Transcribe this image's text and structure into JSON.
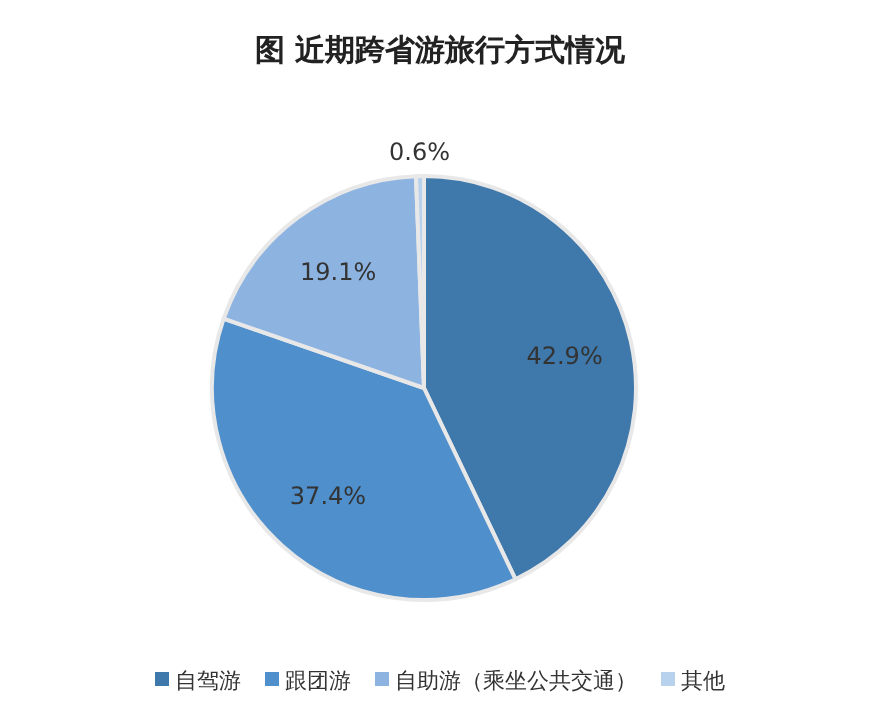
{
  "chart_data": {
    "type": "pie",
    "title": "图  近期跨省游旅行方式情况",
    "categories": [
      "自驾游",
      "跟团游",
      "自助游（乘坐公共交通）",
      "其他"
    ],
    "values": [
      42.9,
      37.4,
      19.1,
      0.6
    ],
    "colors": [
      "#3f78aa",
      "#4f8fcc",
      "#8db4e1",
      "#b8d1ec"
    ],
    "value_labels": [
      "42.9%",
      "37.4%",
      "19.1%",
      "0.6%"
    ],
    "legend": "bottom"
  }
}
